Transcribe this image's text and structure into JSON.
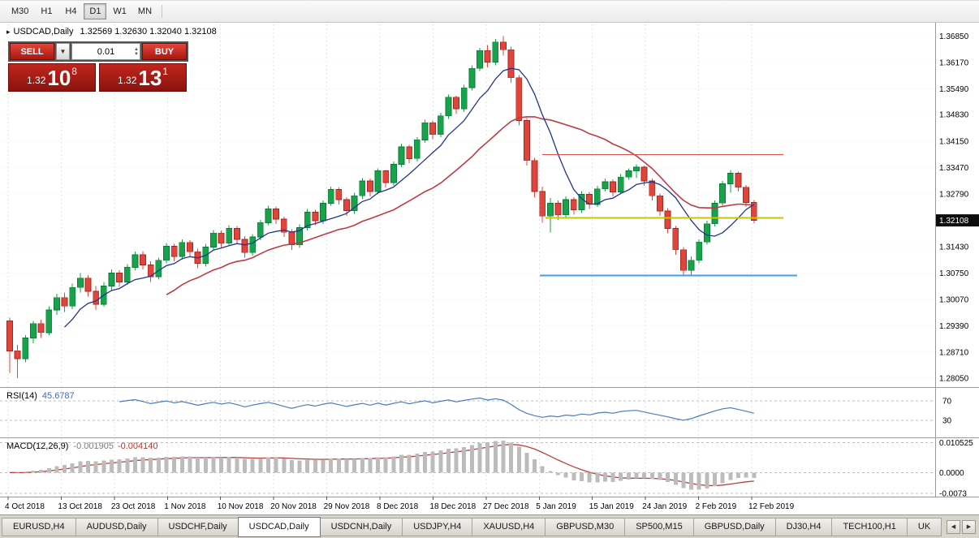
{
  "toolbar": {
    "timeframes": [
      {
        "label": "M30",
        "active": false
      },
      {
        "label": "H1",
        "active": false
      },
      {
        "label": "H4",
        "active": false
      },
      {
        "label": "D1",
        "active": true
      },
      {
        "label": "W1",
        "active": false
      },
      {
        "label": "MN",
        "active": false
      }
    ]
  },
  "icons": {
    "chart_arrow": "▸",
    "dropdown": "▼",
    "spin_up": "▲",
    "spin_down": "▼",
    "scroll_left": "◀",
    "scroll_right": "▶"
  },
  "trade_panel": {
    "sell_label": "SELL",
    "buy_label": "BUY",
    "volume": "0.01",
    "bid": {
      "prefix": "1.32",
      "big": "10",
      "sup": "8"
    },
    "ask": {
      "prefix": "1.32",
      "big": "13",
      "sup": "1"
    }
  },
  "chart_data": {
    "type": "candlestick",
    "title": "USDCAD,Daily",
    "ohlc_display": "1.32569 1.32630 1.32040 1.32108",
    "ylim": [
      1.27817,
      1.37153
    ],
    "x_labels": [
      "4 Oct 2018",
      "13 Oct 2018",
      "23 Oct 2018",
      "1 Nov 2018",
      "10 Nov 2018",
      "20 Nov 2018",
      "29 Nov 2018",
      "8 Dec 2018",
      "18 Dec 2018",
      "27 Dec 2018",
      "5 Jan 2019",
      "15 Jan 2019",
      "24 Jan 2019",
      "2 Feb 2019",
      "12 Feb 2019"
    ],
    "y_labels": [
      {
        "text": "1.36850",
        "value": 1.3685
      },
      {
        "text": "1.36170",
        "value": 1.3617
      },
      {
        "text": "1.35490",
        "value": 1.3549
      },
      {
        "text": "1.34830",
        "value": 1.3483
      },
      {
        "text": "1.34150",
        "value": 1.3415
      },
      {
        "text": "1.33470",
        "value": 1.3347
      },
      {
        "text": "1.32790",
        "value": 1.3279
      },
      {
        "text": "1.31430",
        "value": 1.3143
      },
      {
        "text": "1.30750",
        "value": 1.3075
      },
      {
        "text": "1.30070",
        "value": 1.3007
      },
      {
        "text": "1.29390",
        "value": 1.2939
      },
      {
        "text": "1.28710",
        "value": 1.2871
      },
      {
        "text": "1.28050",
        "value": 1.2805
      }
    ],
    "current_price": {
      "text": "1.32108",
      "value": 1.32108
    },
    "candles": [
      [
        1.2952,
        1.296,
        1.2818,
        1.2875
      ],
      [
        1.2875,
        1.289,
        1.2805,
        1.2855
      ],
      [
        1.2855,
        1.2915,
        1.2845,
        1.2908
      ],
      [
        1.2908,
        1.2952,
        1.2895,
        1.2945
      ],
      [
        1.2945,
        1.2955,
        1.2908,
        1.2922
      ],
      [
        1.2922,
        1.299,
        1.2915,
        1.298
      ],
      [
        1.298,
        1.3022,
        1.2968,
        1.3012
      ],
      [
        1.3012,
        1.3025,
        1.2975,
        1.299
      ],
      [
        1.299,
        1.3048,
        1.2982,
        1.3038
      ],
      [
        1.3038,
        1.3075,
        1.3025,
        1.3062
      ],
      [
        1.3062,
        1.307,
        1.3015,
        1.3028
      ],
      [
        1.3028,
        1.3042,
        1.298,
        1.2995
      ],
      [
        1.2995,
        1.3052,
        1.2988,
        1.3042
      ],
      [
        1.3042,
        1.3085,
        1.303,
        1.3075
      ],
      [
        1.3075,
        1.3082,
        1.304,
        1.3052
      ],
      [
        1.3052,
        1.3098,
        1.3045,
        1.309
      ],
      [
        1.309,
        1.313,
        1.3082,
        1.3122
      ],
      [
        1.3122,
        1.3132,
        1.3085,
        1.3096
      ],
      [
        1.3096,
        1.3105,
        1.3052,
        1.3066
      ],
      [
        1.3066,
        1.3115,
        1.3058,
        1.3108
      ],
      [
        1.3108,
        1.3152,
        1.31,
        1.3144
      ],
      [
        1.3144,
        1.315,
        1.3105,
        1.3118
      ],
      [
        1.3118,
        1.3162,
        1.311,
        1.3154
      ],
      [
        1.3154,
        1.316,
        1.3118,
        1.313
      ],
      [
        1.313,
        1.3138,
        1.3088,
        1.31
      ],
      [
        1.31,
        1.315,
        1.3092,
        1.3142
      ],
      [
        1.3142,
        1.3186,
        1.3135,
        1.3178
      ],
      [
        1.3178,
        1.3185,
        1.314,
        1.3152
      ],
      [
        1.3152,
        1.3198,
        1.3145,
        1.319
      ],
      [
        1.319,
        1.3196,
        1.315,
        1.3162
      ],
      [
        1.3162,
        1.317,
        1.3115,
        1.3128
      ],
      [
        1.3128,
        1.3175,
        1.312,
        1.3168
      ],
      [
        1.3168,
        1.3212,
        1.316,
        1.3205
      ],
      [
        1.3205,
        1.3248,
        1.3198,
        1.324
      ],
      [
        1.324,
        1.3246,
        1.3202,
        1.3214
      ],
      [
        1.3214,
        1.322,
        1.3168,
        1.318
      ],
      [
        1.318,
        1.3188,
        1.3135,
        1.3148
      ],
      [
        1.3148,
        1.32,
        1.314,
        1.3192
      ],
      [
        1.3192,
        1.324,
        1.3185,
        1.3232
      ],
      [
        1.3232,
        1.3238,
        1.3198,
        1.321
      ],
      [
        1.321,
        1.3262,
        1.3202,
        1.3255
      ],
      [
        1.3255,
        1.3298,
        1.3248,
        1.329
      ],
      [
        1.329,
        1.3296,
        1.3252,
        1.3264
      ],
      [
        1.3264,
        1.327,
        1.3222,
        1.3236
      ],
      [
        1.3236,
        1.3282,
        1.3228,
        1.3274
      ],
      [
        1.3274,
        1.332,
        1.3266,
        1.3312
      ],
      [
        1.3312,
        1.3318,
        1.3272,
        1.3285
      ],
      [
        1.3285,
        1.3345,
        1.3278,
        1.3338
      ],
      [
        1.3338,
        1.334,
        1.3295,
        1.3308
      ],
      [
        1.3308,
        1.3362,
        1.33,
        1.3355
      ],
      [
        1.3355,
        1.3408,
        1.3348,
        1.34
      ],
      [
        1.34,
        1.3405,
        1.3358,
        1.337
      ],
      [
        1.337,
        1.3425,
        1.3362,
        1.3418
      ],
      [
        1.3418,
        1.347,
        1.341,
        1.3462
      ],
      [
        1.3462,
        1.3468,
        1.342,
        1.3432
      ],
      [
        1.3432,
        1.3488,
        1.3425,
        1.348
      ],
      [
        1.348,
        1.3535,
        1.3472,
        1.3528
      ],
      [
        1.3528,
        1.3532,
        1.3485,
        1.3498
      ],
      [
        1.3498,
        1.356,
        1.349,
        1.3552
      ],
      [
        1.3552,
        1.361,
        1.3545,
        1.3602
      ],
      [
        1.3602,
        1.3655,
        1.3595,
        1.3648
      ],
      [
        1.3648,
        1.3662,
        1.3605,
        1.3618
      ],
      [
        1.3618,
        1.3678,
        1.361,
        1.367
      ],
      [
        1.367,
        1.3685,
        1.3635,
        1.365
      ],
      [
        1.365,
        1.3658,
        1.3565,
        1.3578
      ],
      [
        1.3578,
        1.3585,
        1.3455,
        1.3468
      ],
      [
        1.3468,
        1.3475,
        1.3352,
        1.3365
      ],
      [
        1.3365,
        1.3372,
        1.327,
        1.3285
      ],
      [
        1.3285,
        1.3298,
        1.3205,
        1.3222
      ],
      [
        1.3222,
        1.3268,
        1.318,
        1.3255
      ],
      [
        1.3255,
        1.3262,
        1.3212,
        1.3225
      ],
      [
        1.3225,
        1.3272,
        1.3218,
        1.3264
      ],
      [
        1.3264,
        1.327,
        1.3226,
        1.3238
      ],
      [
        1.3238,
        1.3286,
        1.323,
        1.3278
      ],
      [
        1.3278,
        1.3284,
        1.324,
        1.3252
      ],
      [
        1.3252,
        1.33,
        1.3245,
        1.3292
      ],
      [
        1.3292,
        1.3318,
        1.3285,
        1.331
      ],
      [
        1.331,
        1.3316,
        1.3272,
        1.3284
      ],
      [
        1.3284,
        1.333,
        1.3278,
        1.3322
      ],
      [
        1.3322,
        1.3345,
        1.3315,
        1.3338
      ],
      [
        1.3338,
        1.3355,
        1.332,
        1.3348
      ],
      [
        1.3348,
        1.3352,
        1.33,
        1.3312
      ],
      [
        1.3312,
        1.3318,
        1.3262,
        1.3274
      ],
      [
        1.3274,
        1.328,
        1.3222,
        1.3235
      ],
      [
        1.3235,
        1.3242,
        1.3178,
        1.319
      ],
      [
        1.319,
        1.3196,
        1.3122,
        1.3135
      ],
      [
        1.3135,
        1.3142,
        1.307,
        1.3082
      ],
      [
        1.3082,
        1.3118,
        1.3069,
        1.3108
      ],
      [
        1.3108,
        1.3162,
        1.31,
        1.3155
      ],
      [
        1.3155,
        1.321,
        1.3148,
        1.3202
      ],
      [
        1.3202,
        1.3262,
        1.3195,
        1.3255
      ],
      [
        1.3255,
        1.3312,
        1.3248,
        1.3305
      ],
      [
        1.3305,
        1.334,
        1.3282,
        1.3332
      ],
      [
        1.3332,
        1.3336,
        1.3285,
        1.3296
      ],
      [
        1.3296,
        1.3302,
        1.3245,
        1.3257
      ],
      [
        1.32569,
        1.3263,
        1.3204,
        1.32108
      ]
    ],
    "overlays": [
      {
        "name": "resistance-line-red",
        "type": "hline",
        "price": 1.338,
        "x1": 0.58,
        "x2": 0.838,
        "color": "#e0514a",
        "width": 1.3
      },
      {
        "name": "pivot-line-yellow",
        "type": "hline",
        "price": 1.3217,
        "x1": 0.583,
        "x2": 0.838,
        "color": "#c6c700",
        "width": 1.8
      },
      {
        "name": "support-line-blue",
        "type": "hline",
        "price": 1.3069,
        "x1": 0.577,
        "x2": 0.852,
        "color": "#3e9fe8",
        "width": 2.2
      }
    ],
    "indicators": {
      "rsi": {
        "name": "RSI(14)",
        "value": "45.6787",
        "levels": [
          {
            "text": "70",
            "value": 70
          },
          {
            "text": "30",
            "value": 30
          }
        ],
        "color": "#4a7ebd"
      },
      "macd": {
        "name": "MACD(12,26,9)",
        "main_value": "-0.001905",
        "signal_value": "-0.004140",
        "axis_labels": [
          {
            "text": "0.010525",
            "value": 0.010525
          },
          {
            "text": "0.0000",
            "value": 0
          },
          {
            "text": "-0.0073",
            "value": -0.0073
          }
        ]
      }
    },
    "colors": {
      "bull": "#17a24b",
      "bull_border": "#0b7a34",
      "bear": "#e0453c",
      "bear_border": "#a32720",
      "ma_fast": "#22348f",
      "ma_slow": "#bf3b43",
      "rsi_line": "#4a7ebd",
      "macd_hist": "#bcbcbc",
      "macd_signal": "#b8403e",
      "badge_bg": "#0d0d0d",
      "badge_text": "#ffffff",
      "grid": "#e3e3e3"
    }
  },
  "tabs": {
    "items": [
      "EURUSD,H4",
      "AUDUSD,Daily",
      "USDCHF,Daily",
      "USDCAD,Daily",
      "USDCNH,Daily",
      "USDJPY,H4",
      "XAUUSD,H4",
      "GBPUSD,M30",
      "SP500,M15",
      "GBPUSD,Daily",
      "DJ30,H4",
      "TECH100,H1",
      "UK"
    ],
    "active_index": 3
  }
}
